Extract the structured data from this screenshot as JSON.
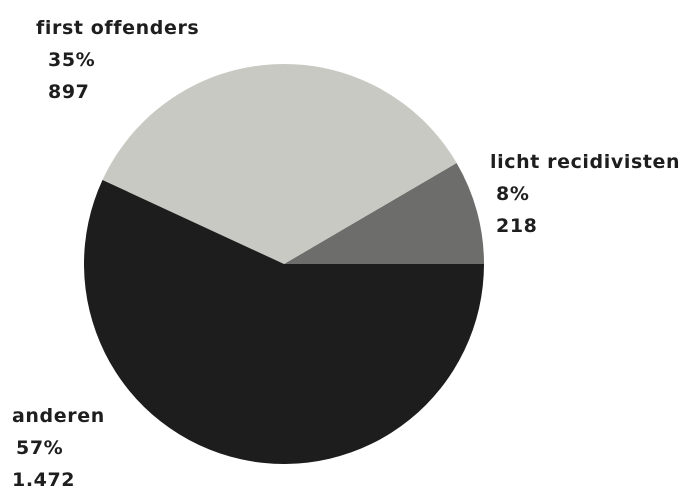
{
  "chart_data": {
    "type": "pie",
    "title": "",
    "slices": [
      {
        "label": "first offenders",
        "percent": "35%",
        "count": "897",
        "value": 897,
        "color": "#c7c9c2"
      },
      {
        "label": "licht recidivisten",
        "percent": "8%",
        "count": "218",
        "value": 218,
        "color": "#6d6d6b"
      },
      {
        "label": "anderen",
        "percent": "57%",
        "count": "1.472",
        "value": 1472,
        "color": "#1d1d1d"
      }
    ]
  }
}
